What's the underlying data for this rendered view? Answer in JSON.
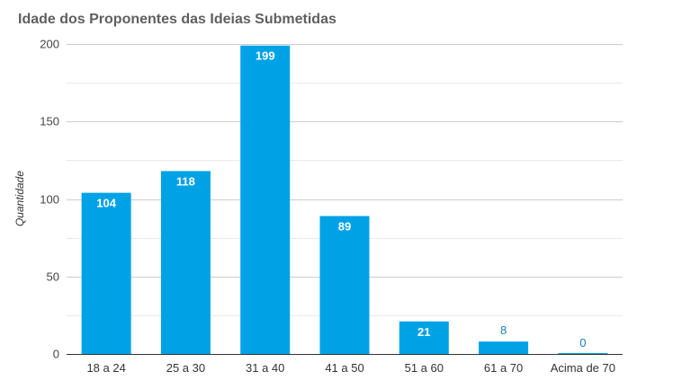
{
  "chart_data": {
    "type": "bar",
    "title": "Idade dos Proponentes das Ideias Submetidas",
    "xlabel": "",
    "ylabel": "Quantidade",
    "categories": [
      "18 a 24",
      "25 a 30",
      "31 a 40",
      "41 a 50",
      "51 a 60",
      "61 a 70",
      "Acima de 70"
    ],
    "values": [
      104,
      118,
      199,
      89,
      21,
      8,
      0
    ],
    "data_labels": [
      "104",
      "118",
      "199",
      "89",
      "21",
      "8",
      "0"
    ],
    "ylim": [
      0,
      200
    ],
    "yticks": [
      0,
      50,
      100,
      150,
      200
    ],
    "ytick_labels": [
      "0",
      "50",
      "100",
      "150",
      "200"
    ],
    "grid": true,
    "legend": "none",
    "colors": {
      "bar": "#00a2e6",
      "label_inside": "#ffffff",
      "label_outside": "#1a7fbf",
      "grid": "#cccccc",
      "minor_grid": "#e8e8e8",
      "axis": "#333333",
      "title": "#5f5f5f"
    }
  }
}
